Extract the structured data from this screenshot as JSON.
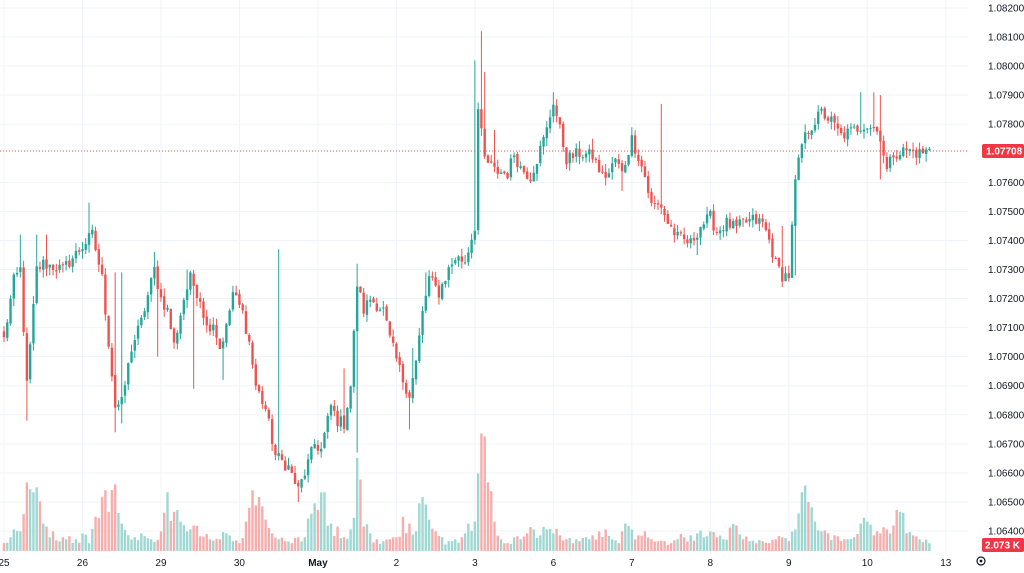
{
  "chart_data": {
    "type": "candlestick",
    "title": "",
    "xlabel": "",
    "ylabel": "",
    "ylim": [
      1.0635,
      1.0825
    ],
    "y_ticks": [
      "1.08200",
      "1.08100",
      "1.08000",
      "1.07900",
      "1.07800",
      "1.07600",
      "1.07500",
      "1.07400",
      "1.07300",
      "1.07200",
      "1.07100",
      "1.07000",
      "1.06900",
      "1.06800",
      "1.06700",
      "1.06600",
      "1.06500",
      "1.06400"
    ],
    "x_ticks": [
      {
        "label": "25",
        "index": 0,
        "bold": false
      },
      {
        "label": "26",
        "index": 24,
        "bold": false
      },
      {
        "label": "29",
        "index": 48,
        "bold": false
      },
      {
        "label": "30",
        "index": 72,
        "bold": false
      },
      {
        "label": "May",
        "index": 96,
        "bold": true
      },
      {
        "label": "2",
        "index": 120,
        "bold": false
      },
      {
        "label": "3",
        "index": 144,
        "bold": false
      },
      {
        "label": "6",
        "index": 168,
        "bold": false
      },
      {
        "label": "7",
        "index": 192,
        "bold": false
      },
      {
        "label": "8",
        "index": 216,
        "bold": false
      },
      {
        "label": "9",
        "index": 240,
        "bold": false
      },
      {
        "label": "10",
        "index": 264,
        "bold": false
      },
      {
        "label": "13",
        "index": 288,
        "bold": false
      }
    ],
    "last_price": {
      "label": "1.07708",
      "value": 1.07708
    },
    "volume_badge": "2.073 K",
    "anchor_closes": [
      [
        0,
        1.0706
      ],
      [
        3,
        1.0726
      ],
      [
        5,
        1.073
      ],
      [
        7,
        1.069
      ],
      [
        10,
        1.073
      ],
      [
        12,
        1.0732
      ],
      [
        18,
        1.073
      ],
      [
        24,
        1.0738
      ],
      [
        27,
        1.0742
      ],
      [
        30,
        1.0727
      ],
      [
        34,
        1.0683
      ],
      [
        36,
        1.0684
      ],
      [
        39,
        1.0703
      ],
      [
        42,
        1.0712
      ],
      [
        46,
        1.073
      ],
      [
        48,
        1.072
      ],
      [
        50,
        1.0716
      ],
      [
        52,
        1.0704
      ],
      [
        55,
        1.072
      ],
      [
        57,
        1.0727
      ],
      [
        60,
        1.072
      ],
      [
        62,
        1.071
      ],
      [
        64,
        1.0712
      ],
      [
        66,
        1.0703
      ],
      [
        68,
        1.071
      ],
      [
        70,
        1.0722
      ],
      [
        73,
        1.0715
      ],
      [
        75,
        1.0705
      ],
      [
        77,
        1.069
      ],
      [
        80,
        1.0682
      ],
      [
        83,
        1.0666
      ],
      [
        87,
        1.0662
      ],
      [
        90,
        1.0654
      ],
      [
        92,
        1.066
      ],
      [
        95,
        1.067
      ],
      [
        97,
        1.0668
      ],
      [
        100,
        1.0683
      ],
      [
        102,
        1.0678
      ],
      [
        104,
        1.0677
      ],
      [
        106,
        1.069
      ],
      [
        108,
        1.0725
      ],
      [
        110,
        1.0716
      ],
      [
        112,
        1.072
      ],
      [
        116,
        1.0716
      ],
      [
        118,
        1.0706
      ],
      [
        120,
        1.0699
      ],
      [
        122,
        1.0692
      ],
      [
        124,
        1.0687
      ],
      [
        126,
        1.0698
      ],
      [
        128,
        1.0715
      ],
      [
        130,
        1.0727
      ],
      [
        133,
        1.0722
      ],
      [
        136,
        1.073
      ],
      [
        138,
        1.0734
      ],
      [
        141,
        1.0733
      ],
      [
        144,
        1.0745
      ],
      [
        145,
        1.0785
      ],
      [
        147,
        1.0768
      ],
      [
        150,
        1.0764
      ],
      [
        154,
        1.0763
      ],
      [
        156,
        1.077
      ],
      [
        158,
        1.0765
      ],
      [
        161,
        1.0762
      ],
      [
        163,
        1.0768
      ],
      [
        166,
        1.0778
      ],
      [
        168,
        1.0788
      ],
      [
        170,
        1.0778
      ],
      [
        172,
        1.0768
      ],
      [
        176,
        1.077
      ],
      [
        180,
        1.0769
      ],
      [
        183,
        1.0762
      ],
      [
        185,
        1.0763
      ],
      [
        187,
        1.0768
      ],
      [
        189,
        1.0763
      ],
      [
        192,
        1.0775
      ],
      [
        194,
        1.0769
      ],
      [
        196,
        1.0762
      ],
      [
        198,
        1.0752
      ],
      [
        201,
        1.0752
      ],
      [
        203,
        1.0746
      ],
      [
        206,
        1.0741
      ],
      [
        210,
        1.0739
      ],
      [
        213,
        1.0745
      ],
      [
        216,
        1.0748
      ],
      [
        218,
        1.0743
      ],
      [
        221,
        1.0746
      ],
      [
        224,
        1.0744
      ],
      [
        226,
        1.0746
      ],
      [
        229,
        1.0747
      ],
      [
        232,
        1.0746
      ],
      [
        234,
        1.074
      ],
      [
        236,
        1.0732
      ],
      [
        238,
        1.0728
      ],
      [
        240,
        1.0728
      ],
      [
        242,
        1.076
      ],
      [
        244,
        1.0773
      ],
      [
        246,
        1.0778
      ],
      [
        250,
        1.0784
      ],
      [
        253,
        1.0781
      ],
      [
        256,
        1.0776
      ],
      [
        260,
        1.0778
      ],
      [
        263,
        1.078
      ],
      [
        266,
        1.0779
      ],
      [
        268,
        1.0776
      ],
      [
        270,
        1.0764
      ],
      [
        272,
        1.077
      ],
      [
        276,
        1.0771
      ],
      [
        280,
        1.077
      ],
      [
        283,
        1.0771
      ]
    ],
    "wick_highs": [
      [
        0,
        1.0708
      ],
      [
        5,
        1.0742
      ],
      [
        7,
        1.0708
      ],
      [
        10,
        1.0742
      ],
      [
        13,
        1.0742
      ],
      [
        26,
        1.0753
      ],
      [
        34,
        1.0729
      ],
      [
        36,
        1.0729
      ],
      [
        46,
        1.0736
      ],
      [
        56,
        1.073
      ],
      [
        84,
        1.0737
      ],
      [
        104,
        1.0696
      ],
      [
        108,
        1.0732
      ],
      [
        125,
        1.0703
      ],
      [
        129,
        1.0729
      ],
      [
        141,
        1.0735
      ],
      [
        144,
        1.0802
      ],
      [
        146,
        1.0812
      ],
      [
        147,
        1.0798
      ],
      [
        150,
        1.0778
      ],
      [
        168,
        1.0791
      ],
      [
        180,
        1.0775
      ],
      [
        201,
        1.0787
      ],
      [
        221,
        1.0748
      ],
      [
        238,
        1.0745
      ],
      [
        250,
        1.0786
      ],
      [
        262,
        1.0791
      ],
      [
        266,
        1.0791
      ],
      [
        268,
        1.079
      ]
    ],
    "wick_lows": [
      [
        7,
        1.0678
      ],
      [
        34,
        1.0674
      ],
      [
        36,
        1.0677
      ],
      [
        47,
        1.07
      ],
      [
        58,
        1.0689
      ],
      [
        67,
        1.0692
      ],
      [
        90,
        1.065
      ],
      [
        104,
        1.0674
      ],
      [
        108,
        1.0667
      ],
      [
        124,
        1.0675
      ],
      [
        125,
        1.0684
      ],
      [
        163,
        1.0762
      ],
      [
        189,
        1.0757
      ],
      [
        199,
        1.0757
      ],
      [
        201,
        1.0749
      ],
      [
        212,
        1.0735
      ],
      [
        238,
        1.0724
      ],
      [
        242,
        1.0728
      ],
      [
        268,
        1.0761
      ]
    ],
    "volumes": [
      [
        0,
        8
      ],
      [
        3,
        22
      ],
      [
        5,
        20
      ],
      [
        7,
        70
      ],
      [
        9,
        60
      ],
      [
        12,
        28
      ],
      [
        15,
        20
      ],
      [
        18,
        14
      ],
      [
        22,
        12
      ],
      [
        24,
        18
      ],
      [
        26,
        8
      ],
      [
        28,
        35
      ],
      [
        30,
        55
      ],
      [
        32,
        40
      ],
      [
        34,
        68
      ],
      [
        36,
        28
      ],
      [
        38,
        16
      ],
      [
        40,
        14
      ],
      [
        42,
        18
      ],
      [
        45,
        12
      ],
      [
        48,
        20
      ],
      [
        50,
        60
      ],
      [
        52,
        40
      ],
      [
        54,
        30
      ],
      [
        56,
        20
      ],
      [
        58,
        26
      ],
      [
        60,
        15
      ],
      [
        63,
        12
      ],
      [
        66,
        12
      ],
      [
        68,
        18
      ],
      [
        70,
        10
      ],
      [
        72,
        8
      ],
      [
        74,
        30
      ],
      [
        76,
        62
      ],
      [
        78,
        55
      ],
      [
        80,
        32
      ],
      [
        82,
        18
      ],
      [
        84,
        12
      ],
      [
        86,
        10
      ],
      [
        88,
        8
      ],
      [
        90,
        14
      ],
      [
        92,
        14
      ],
      [
        94,
        38
      ],
      [
        96,
        42
      ],
      [
        98,
        60
      ],
      [
        100,
        28
      ],
      [
        102,
        25
      ],
      [
        104,
        14
      ],
      [
        106,
        22
      ],
      [
        108,
        95
      ],
      [
        110,
        25
      ],
      [
        112,
        18
      ],
      [
        114,
        12
      ],
      [
        116,
        10
      ],
      [
        118,
        12
      ],
      [
        120,
        14
      ],
      [
        122,
        35
      ],
      [
        124,
        28
      ],
      [
        126,
        20
      ],
      [
        128,
        55
      ],
      [
        130,
        32
      ],
      [
        132,
        20
      ],
      [
        134,
        14
      ],
      [
        136,
        10
      ],
      [
        138,
        12
      ],
      [
        140,
        14
      ],
      [
        142,
        28
      ],
      [
        144,
        30
      ],
      [
        146,
        120
      ],
      [
        148,
        70
      ],
      [
        150,
        30
      ],
      [
        152,
        12
      ],
      [
        154,
        8
      ],
      [
        156,
        14
      ],
      [
        158,
        12
      ],
      [
        160,
        18
      ],
      [
        162,
        22
      ],
      [
        164,
        16
      ],
      [
        166,
        22
      ],
      [
        168,
        18
      ],
      [
        170,
        16
      ],
      [
        172,
        12
      ],
      [
        174,
        8
      ],
      [
        176,
        10
      ],
      [
        178,
        14
      ],
      [
        180,
        16
      ],
      [
        182,
        20
      ],
      [
        184,
        22
      ],
      [
        186,
        12
      ],
      [
        188,
        8
      ],
      [
        190,
        28
      ],
      [
        192,
        22
      ],
      [
        194,
        16
      ],
      [
        196,
        20
      ],
      [
        198,
        12
      ],
      [
        200,
        10
      ],
      [
        202,
        10
      ],
      [
        204,
        8
      ],
      [
        206,
        12
      ],
      [
        208,
        14
      ],
      [
        210,
        16
      ],
      [
        212,
        18
      ],
      [
        214,
        14
      ],
      [
        216,
        20
      ],
      [
        218,
        14
      ],
      [
        220,
        12
      ],
      [
        222,
        24
      ],
      [
        224,
        26
      ],
      [
        226,
        12
      ],
      [
        228,
        10
      ],
      [
        230,
        8
      ],
      [
        232,
        10
      ],
      [
        234,
        8
      ],
      [
        236,
        12
      ],
      [
        238,
        14
      ],
      [
        240,
        10
      ],
      [
        242,
        22
      ],
      [
        244,
        60
      ],
      [
        246,
        50
      ],
      [
        248,
        30
      ],
      [
        250,
        20
      ],
      [
        252,
        18
      ],
      [
        254,
        16
      ],
      [
        256,
        10
      ],
      [
        258,
        12
      ],
      [
        260,
        14
      ],
      [
        262,
        28
      ],
      [
        264,
        30
      ],
      [
        266,
        16
      ],
      [
        268,
        18
      ],
      [
        270,
        22
      ],
      [
        272,
        26
      ],
      [
        274,
        40
      ],
      [
        276,
        18
      ],
      [
        278,
        16
      ],
      [
        280,
        12
      ],
      [
        283,
        8
      ]
    ],
    "n_candles": 284,
    "colors": {
      "up": "#26a69a",
      "down": "#ef5350",
      "up_volume": "#9fd8d3",
      "down_volume": "#f6aeac",
      "grid": "#f0f3fa",
      "axis_text": "#131722",
      "price_line": "#ef5350",
      "badge_bg": "#f23645",
      "badge_text": "#ffffff"
    },
    "grid": true,
    "settings_icon": "gear-icon"
  }
}
